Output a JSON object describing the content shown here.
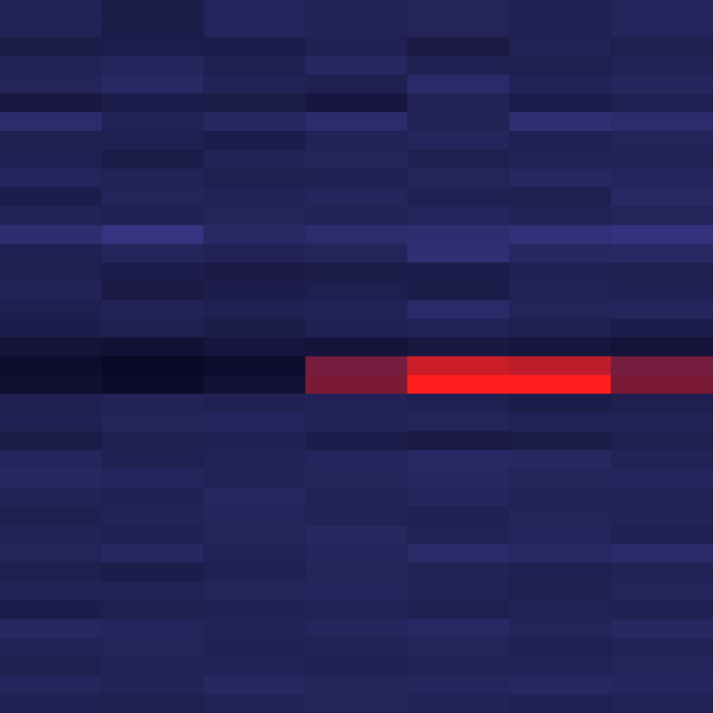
{
  "chart_data": {
    "type": "heatmap",
    "tick_labels": false,
    "grid": false,
    "color_range": [
      0,
      1
    ],
    "cells": [
      [
        0.3,
        0.22,
        0.33,
        0.3,
        0.32,
        0.28,
        0.34
      ],
      [
        0.3,
        0.22,
        0.33,
        0.3,
        0.32,
        0.28,
        0.34
      ],
      [
        0.22,
        0.25,
        0.24,
        0.28,
        0.2,
        0.3,
        0.26
      ],
      [
        0.3,
        0.34,
        0.26,
        0.36,
        0.28,
        0.26,
        0.3
      ],
      [
        0.32,
        0.38,
        0.3,
        0.26,
        0.4,
        0.3,
        0.34
      ],
      [
        0.18,
        0.24,
        0.22,
        0.16,
        0.3,
        0.24,
        0.28
      ],
      [
        0.42,
        0.3,
        0.36,
        0.42,
        0.3,
        0.45,
        0.42
      ],
      [
        0.26,
        0.28,
        0.24,
        0.3,
        0.34,
        0.28,
        0.32
      ],
      [
        0.28,
        0.22,
        0.3,
        0.32,
        0.26,
        0.3,
        0.3
      ],
      [
        0.34,
        0.3,
        0.26,
        0.28,
        0.32,
        0.36,
        0.34
      ],
      [
        0.24,
        0.32,
        0.3,
        0.34,
        0.28,
        0.26,
        0.38
      ],
      [
        0.3,
        0.28,
        0.32,
        0.3,
        0.34,
        0.3,
        0.32
      ],
      [
        0.44,
        0.52,
        0.38,
        0.42,
        0.44,
        0.48,
        0.5
      ],
      [
        0.28,
        0.34,
        0.3,
        0.32,
        0.46,
        0.36,
        0.38
      ],
      [
        0.26,
        0.24,
        0.2,
        0.22,
        0.24,
        0.28,
        0.26
      ],
      [
        0.3,
        0.2,
        0.24,
        0.26,
        0.22,
        0.3,
        0.28
      ],
      [
        0.26,
        0.3,
        0.28,
        0.3,
        0.4,
        0.32,
        0.34
      ],
      [
        0.24,
        0.26,
        0.22,
        0.28,
        0.3,
        0.26,
        0.24
      ],
      [
        0.14,
        0.12,
        0.16,
        0.14,
        0.18,
        0.16,
        0.14
      ],
      [
        0.08,
        0.04,
        0.08,
        0.78,
        0.92,
        0.9,
        0.78
      ],
      [
        0.1,
        0.06,
        0.12,
        0.8,
        1.0,
        1.0,
        0.8
      ],
      [
        0.26,
        0.3,
        0.28,
        0.3,
        0.28,
        0.24,
        0.26
      ],
      [
        0.28,
        0.32,
        0.34,
        0.3,
        0.32,
        0.3,
        0.3
      ],
      [
        0.22,
        0.26,
        0.28,
        0.24,
        0.2,
        0.22,
        0.26
      ],
      [
        0.34,
        0.28,
        0.3,
        0.34,
        0.38,
        0.36,
        0.3
      ],
      [
        0.36,
        0.34,
        0.3,
        0.32,
        0.36,
        0.32,
        0.34
      ],
      [
        0.3,
        0.28,
        0.36,
        0.3,
        0.34,
        0.3,
        0.3
      ],
      [
        0.26,
        0.3,
        0.34,
        0.3,
        0.28,
        0.32,
        0.3
      ],
      [
        0.3,
        0.28,
        0.32,
        0.36,
        0.3,
        0.34,
        0.28
      ],
      [
        0.32,
        0.36,
        0.3,
        0.34,
        0.4,
        0.38,
        0.4
      ],
      [
        0.26,
        0.24,
        0.28,
        0.32,
        0.3,
        0.28,
        0.3
      ],
      [
        0.3,
        0.3,
        0.32,
        0.34,
        0.3,
        0.26,
        0.32
      ],
      [
        0.24,
        0.26,
        0.28,
        0.3,
        0.26,
        0.3,
        0.28
      ],
      [
        0.36,
        0.34,
        0.3,
        0.34,
        0.38,
        0.32,
        0.36
      ],
      [
        0.3,
        0.32,
        0.28,
        0.3,
        0.32,
        0.28,
        0.3
      ],
      [
        0.26,
        0.3,
        0.3,
        0.28,
        0.3,
        0.3,
        0.32
      ],
      [
        0.34,
        0.3,
        0.36,
        0.32,
        0.34,
        0.36,
        0.34
      ],
      [
        0.28,
        0.26,
        0.3,
        0.32,
        0.3,
        0.28,
        0.3
      ]
    ]
  }
}
